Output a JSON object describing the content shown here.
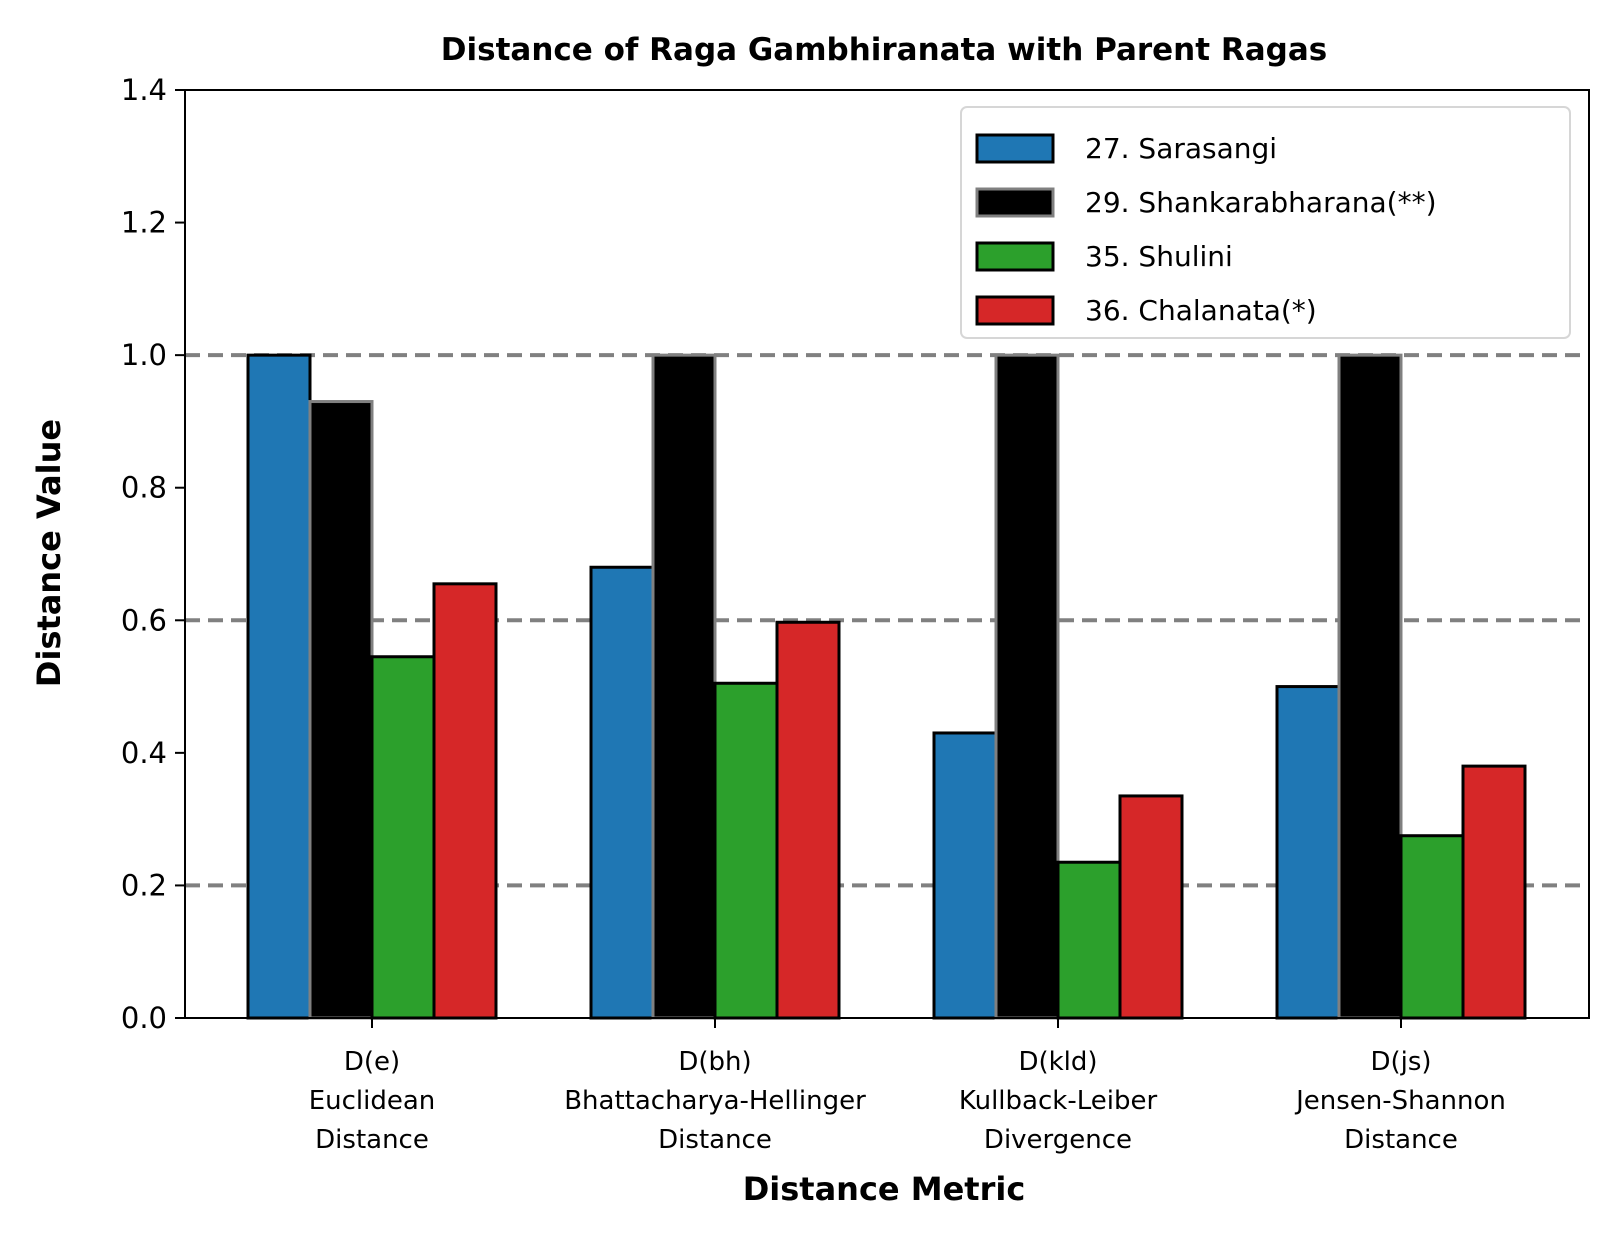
{
  "chart_data": {
    "type": "bar",
    "title": "Distance of Raga Gambhiranata with Parent Ragas",
    "xlabel": "Distance Metric",
    "ylabel": "Distance Value",
    "ylim": [
      0,
      1.4
    ],
    "yticks": [
      "0.0",
      "0.2",
      "0.4",
      "0.6",
      "0.8",
      "1.0",
      "1.2",
      "1.4"
    ],
    "reference_lines": [
      0.2,
      0.6,
      1.0
    ],
    "legend_position": "top-right",
    "categories": [
      [
        "D(e)",
        "Euclidean",
        "Distance"
      ],
      [
        "D(bh)",
        "Bhattacharya-Hellinger",
        "Distance"
      ],
      [
        "D(kld)",
        "Kullback-Leiber",
        "Divergence"
      ],
      [
        "D(js)",
        "Jensen-Shannon",
        "Distance"
      ]
    ],
    "series": [
      {
        "name": "27. Sarasangi",
        "color": "#1f77b4",
        "edge": "#000000",
        "values": [
          1.0,
          0.68,
          0.43,
          0.5
        ]
      },
      {
        "name": "29. Shankarabharana(**)",
        "color": "#000000",
        "edge": "#808080",
        "values": [
          0.93,
          1.0,
          1.0,
          1.0
        ]
      },
      {
        "name": "35. Shulini",
        "color": "#2ca02c",
        "edge": "#000000",
        "values": [
          0.545,
          0.505,
          0.235,
          0.275
        ]
      },
      {
        "name": "36. Chalanata(*)",
        "color": "#d62728",
        "edge": "#000000",
        "values": [
          0.655,
          0.597,
          0.335,
          0.38
        ]
      }
    ]
  }
}
